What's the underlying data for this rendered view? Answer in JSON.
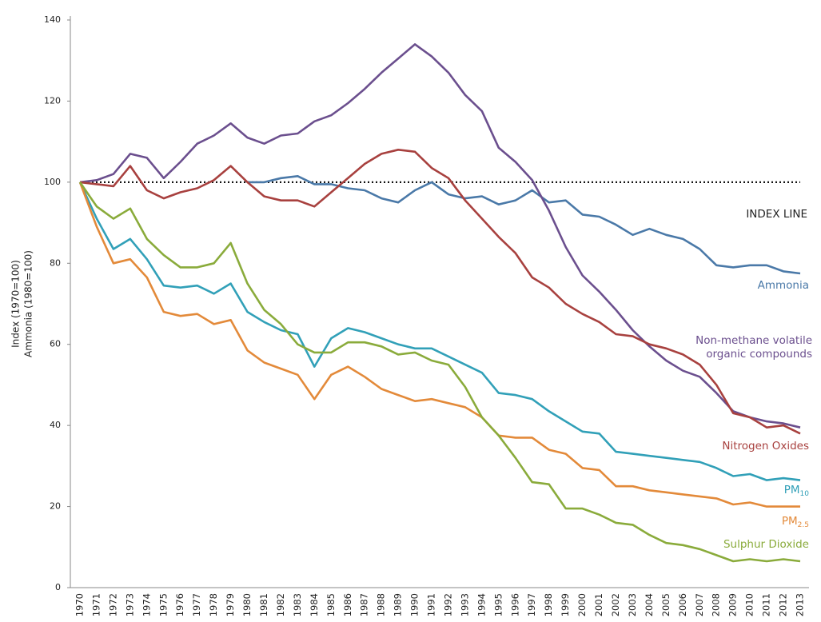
{
  "chart_data": {
    "type": "line",
    "y_label": [
      "Index (1970=100)",
      "Ammonia (1980=100)"
    ],
    "categories": [
      "1970",
      "1971",
      "1972",
      "1973",
      "1974",
      "1975",
      "1976",
      "1977",
      "1978",
      "1979",
      "1980",
      "1981",
      "1982",
      "1983",
      "1984",
      "1985",
      "1986",
      "1987",
      "1988",
      "1989",
      "1990",
      "1991",
      "1992",
      "1993",
      "1994",
      "1995",
      "1996",
      "1997",
      "1998",
      "1999",
      "2000",
      "2001",
      "2002",
      "2003",
      "2004",
      "2005",
      "2006",
      "2007",
      "2008",
      "2009",
      "2010",
      "2011",
      "2012",
      "2013"
    ],
    "ylim": [
      0,
      140
    ],
    "yticks": [
      0,
      20,
      40,
      60,
      80,
      100,
      120,
      140
    ],
    "grid": false,
    "index_line": {
      "value": 100,
      "label": "INDEX LINE"
    },
    "series": [
      {
        "name": "Ammonia",
        "color": "#4a79a8",
        "values": [
          null,
          null,
          null,
          null,
          null,
          null,
          null,
          null,
          null,
          null,
          100,
          100,
          101,
          101.5,
          99.5,
          99.5,
          98.5,
          98,
          96,
          95,
          98,
          100,
          97,
          96,
          96.5,
          94.5,
          95.5,
          98,
          95,
          95.5,
          92,
          91.5,
          89.5,
          87,
          88.5,
          87,
          86,
          83.5,
          79.5,
          79,
          79.5,
          79.5,
          78,
          77.5
        ]
      },
      {
        "name": "Non-methane volatile organic compounds",
        "color": "#6b4f8e",
        "values": [
          100,
          100.5,
          102,
          107,
          106,
          101,
          105,
          109.5,
          111.5,
          114.5,
          111,
          109.5,
          111.5,
          112,
          115,
          116.5,
          119.5,
          123,
          127,
          130.5,
          134,
          131,
          127,
          121.5,
          117.5,
          108.5,
          105,
          100.5,
          93,
          84,
          77,
          73,
          68.5,
          63.5,
          59.5,
          56,
          53.5,
          52,
          48,
          43.5,
          42,
          41,
          40.5,
          39.5
        ]
      },
      {
        "name": "Nitrogen Oxides",
        "color": "#a8413f",
        "values": [
          100,
          99.5,
          99,
          104,
          98,
          96,
          97.5,
          98.5,
          100.5,
          104,
          100,
          96.5,
          95.5,
          95.5,
          94,
          97.5,
          101,
          104.5,
          107,
          108,
          107.5,
          103.5,
          101,
          95.5,
          91,
          86.5,
          82.5,
          76.5,
          74,
          70,
          67.5,
          65.5,
          62.5,
          62,
          60,
          59,
          57.5,
          55,
          50,
          43,
          42,
          39.5,
          40,
          38
        ]
      },
      {
        "name": "PM",
        "subscript": "10",
        "color": "#31a0b8",
        "values": [
          100,
          91,
          83.5,
          86,
          81,
          74.5,
          74,
          74.5,
          72.5,
          75,
          68,
          65.5,
          63.5,
          62.5,
          54.5,
          61.5,
          64,
          63,
          61.5,
          60,
          59,
          59,
          57,
          55,
          53,
          48,
          47.5,
          46.5,
          43.5,
          41,
          38.5,
          38,
          33.5,
          33,
          32.5,
          32,
          31.5,
          31,
          29.5,
          27.5,
          28,
          26.5,
          27,
          26.5
        ]
      },
      {
        "name": "PM",
        "subscript": "2.5",
        "color": "#e38a3a",
        "values": [
          100,
          89,
          80,
          81,
          76.5,
          68,
          67,
          67.5,
          65,
          66,
          58.5,
          55.5,
          54,
          52.5,
          46.5,
          52.5,
          54.5,
          52,
          49,
          47.5,
          46,
          46.5,
          45.5,
          44.5,
          42,
          37.5,
          37,
          37,
          34,
          33,
          29.5,
          29,
          25,
          25,
          24,
          23.5,
          23,
          22.5,
          22,
          20.5,
          21,
          20,
          20,
          20
        ]
      },
      {
        "name": "Sulphur Dioxide",
        "color": "#8aab3b",
        "values": [
          100,
          94,
          91,
          93.5,
          86,
          82,
          79,
          79,
          80,
          85,
          75,
          68.5,
          65,
          60,
          58,
          58,
          60.5,
          60.5,
          59.5,
          57.5,
          58,
          56,
          55,
          49.5,
          42,
          37.5,
          32,
          26,
          25.5,
          19.5,
          19.5,
          18,
          16,
          15.5,
          13,
          11,
          10.5,
          9.5,
          8,
          6.5,
          7,
          6.5,
          7,
          6.5
        ]
      }
    ]
  }
}
